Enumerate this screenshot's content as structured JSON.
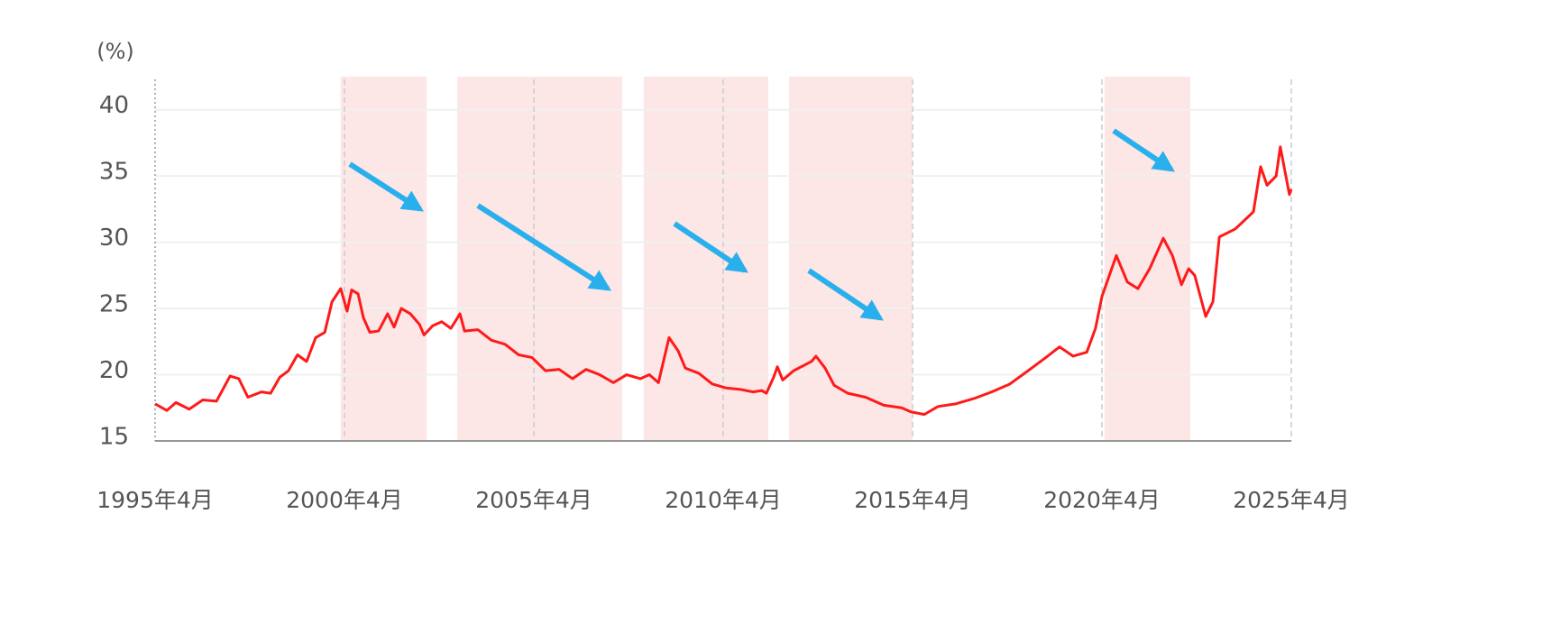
{
  "chart_data": {
    "type": "line",
    "y_label": "(%)",
    "color": "#ff1a1a",
    "shade_color": "#fde6e6",
    "grid": true,
    "xlim": [
      1995.25,
      2025.25
    ],
    "ylim": [
      15,
      42.5
    ],
    "yticks": [
      15,
      20,
      25,
      30,
      35,
      40
    ],
    "xticks": [
      {
        "value": 1995.25,
        "label": "1995年4月"
      },
      {
        "value": 2000.25,
        "label": "2000年4月"
      },
      {
        "value": 2005.25,
        "label": "2005年4月"
      },
      {
        "value": 2010.25,
        "label": "2010年4月"
      },
      {
        "value": 2015.25,
        "label": "2015年4月"
      },
      {
        "value": 2020.25,
        "label": "2020年4月"
      },
      {
        "value": 2025.25,
        "label": "2025年4月"
      }
    ],
    "shaded_ranges": [
      [
        2000.15,
        2002.42
      ],
      [
        2003.23,
        2007.58
      ],
      [
        2008.15,
        2011.44
      ],
      [
        2011.99,
        2015.25
      ],
      [
        2020.32,
        2022.58
      ]
    ],
    "x": [
      1995.25,
      1995.56,
      1995.8,
      1996.15,
      1996.51,
      1996.87,
      1997.23,
      1997.46,
      1997.7,
      1998.06,
      1998.3,
      1998.54,
      1998.77,
      1999.01,
      1999.25,
      1999.49,
      1999.73,
      1999.92,
      2000.15,
      2000.32,
      2000.44,
      2000.61,
      2000.75,
      2000.92,
      2001.15,
      2001.39,
      2001.56,
      2001.75,
      2001.99,
      2002.23,
      2002.35,
      2002.58,
      2002.82,
      2003.06,
      2003.3,
      2003.42,
      2003.77,
      2004.13,
      2004.49,
      2004.85,
      2005.2,
      2005.56,
      2005.92,
      2006.27,
      2006.63,
      2006.99,
      2007.35,
      2007.7,
      2008.06,
      2008.3,
      2008.54,
      2008.82,
      2009.06,
      2009.25,
      2009.61,
      2009.96,
      2010.32,
      2010.68,
      2011.04,
      2011.27,
      2011.39,
      2011.58,
      2011.68,
      2011.82,
      2012.11,
      2012.58,
      2012.7,
      2012.94,
      2013.18,
      2013.54,
      2014.01,
      2014.49,
      2014.96,
      2015.2,
      2015.56,
      2015.92,
      2016.39,
      2016.87,
      2017.34,
      2017.82,
      2018.3,
      2018.77,
      2019.13,
      2019.49,
      2019.85,
      2020.08,
      2020.25,
      2020.63,
      2020.92,
      2021.2,
      2021.51,
      2021.87,
      2022.11,
      2022.35,
      2022.54,
      2022.7,
      2022.99,
      2023.18,
      2023.35,
      2023.77,
      2024.25,
      2024.44,
      2024.61,
      2024.85,
      2024.96,
      2025.2,
      2025.25
    ],
    "values": [
      17.8,
      17.3,
      17.9,
      17.4,
      18.1,
      18.0,
      19.9,
      19.7,
      18.3,
      18.7,
      18.6,
      19.8,
      20.3,
      21.5,
      21.0,
      22.8,
      23.2,
      25.5,
      26.5,
      24.8,
      26.4,
      26.1,
      24.3,
      23.2,
      23.3,
      24.6,
      23.6,
      25.0,
      24.6,
      23.8,
      23.0,
      23.7,
      24.0,
      23.5,
      24.6,
      23.3,
      23.4,
      22.6,
      22.3,
      21.5,
      21.3,
      20.3,
      20.4,
      19.7,
      20.4,
      20.0,
      19.4,
      20.0,
      19.7,
      20.0,
      19.4,
      22.8,
      21.8,
      20.5,
      20.1,
      19.3,
      19.0,
      18.9,
      18.7,
      18.8,
      18.6,
      19.8,
      20.6,
      19.6,
      20.3,
      21.0,
      21.4,
      20.5,
      19.2,
      18.6,
      18.3,
      17.7,
      17.5,
      17.2,
      17.0,
      17.6,
      17.8,
      18.2,
      18.7,
      19.3,
      20.3,
      21.3,
      22.1,
      21.4,
      21.7,
      23.5,
      25.9,
      29.0,
      27.0,
      26.5,
      28.0,
      30.3,
      29.0,
      26.8,
      28.0,
      27.5,
      24.4,
      25.5,
      30.4,
      31.0,
      32.3,
      35.7,
      34.3,
      35.0,
      37.2,
      33.6,
      34.0
    ]
  }
}
